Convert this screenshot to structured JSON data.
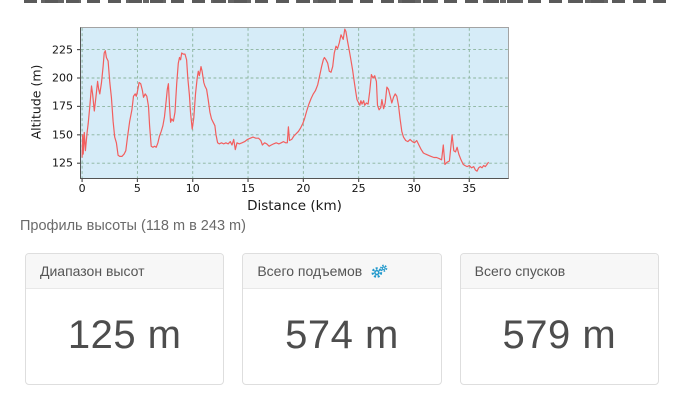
{
  "subtitle": "Профиль высоты (118 m в 243 m)",
  "chart_data": {
    "type": "line",
    "title": "",
    "xlabel": "Distance (km)",
    "ylabel": "Altitude (m)",
    "x_ticks": [
      0,
      5,
      10,
      15,
      20,
      25,
      30,
      35
    ],
    "y_ticks": [
      125,
      150,
      175,
      200,
      225
    ],
    "x_range": [
      -0.1,
      38.5
    ],
    "y_range": [
      112,
      244
    ],
    "grid": true,
    "legend": "none",
    "colors": {
      "plot_bg": "#d6ecf8",
      "grid": "#8ab39c",
      "line": "#f25e5e",
      "spine_dark": "#535353",
      "spine_light": "#a3a3a3"
    },
    "x": [
      0,
      0.05,
      0.1,
      0.2,
      0.3,
      0.45,
      0.55,
      0.7,
      0.85,
      0.95,
      1.1,
      1.25,
      1.4,
      1.5,
      1.6,
      1.75,
      1.9,
      2.0,
      2.1,
      2.2,
      2.35,
      2.5,
      2.65,
      2.8,
      2.95,
      3.1,
      3.25,
      3.4,
      3.6,
      3.8,
      3.95,
      4.1,
      4.3,
      4.5,
      4.65,
      4.8,
      4.9,
      5.0,
      5.15,
      5.3,
      5.45,
      5.55,
      5.7,
      5.85,
      6.0,
      6.1,
      6.25,
      6.4,
      6.55,
      6.7,
      6.85,
      7.0,
      7.15,
      7.3,
      7.45,
      7.6,
      7.7,
      7.8,
      7.9,
      8.0,
      8.1,
      8.25,
      8.4,
      8.55,
      8.7,
      8.8,
      8.9,
      9.0,
      9.15,
      9.3,
      9.45,
      9.55,
      9.7,
      9.8,
      9.95,
      10.1,
      10.25,
      10.4,
      10.5,
      10.6,
      10.75,
      10.85,
      11.0,
      11.1,
      11.25,
      11.4,
      11.55,
      11.7,
      11.85,
      12.0,
      12.1,
      12.25,
      12.4,
      12.6,
      12.8,
      13.0,
      13.2,
      13.4,
      13.55,
      13.7,
      13.85,
      14.0,
      14.2,
      14.45,
      14.7,
      14.95,
      15.2,
      15.45,
      15.7,
      15.95,
      16.15,
      16.3,
      16.5,
      16.7,
      16.9,
      17.1,
      17.3,
      17.55,
      17.8,
      18.0,
      18.2,
      18.4,
      18.55,
      18.65,
      18.75,
      18.95,
      19.15,
      19.35,
      19.55,
      19.75,
      19.95,
      20.1,
      20.3,
      20.5,
      20.7,
      20.9,
      21.1,
      21.3,
      21.5,
      21.65,
      21.8,
      21.9,
      22.05,
      22.2,
      22.35,
      22.5,
      22.65,
      22.8,
      22.95,
      23.1,
      23.25,
      23.4,
      23.5,
      23.6,
      23.75,
      23.85,
      24.0,
      24.15,
      24.3,
      24.45,
      24.6,
      24.75,
      24.85,
      25.0,
      25.1,
      25.2,
      25.3,
      25.45,
      25.55,
      25.7,
      25.85,
      26.0,
      26.15,
      26.3,
      26.45,
      26.6,
      26.7,
      26.85,
      27.0,
      27.1,
      27.25,
      27.4,
      27.55,
      27.7,
      27.85,
      28.0,
      28.15,
      28.3,
      28.45,
      28.6,
      28.75,
      28.9,
      29.05,
      29.25,
      29.45,
      29.65,
      29.85,
      30.05,
      30.25,
      30.45,
      30.65,
      30.85,
      31.05,
      31.3,
      31.55,
      31.8,
      32.05,
      32.3,
      32.5,
      32.65,
      32.8,
      33.0,
      33.2,
      33.45,
      33.6,
      33.75,
      33.9,
      34.05,
      34.25,
      34.45,
      34.6,
      34.8,
      35.0,
      35.2,
      35.4,
      35.55,
      35.7,
      35.85,
      36.0,
      36.15,
      36.3,
      36.45,
      36.6,
      36.75
    ],
    "y": [
      130,
      150,
      133,
      152,
      136,
      152,
      160,
      175,
      193,
      186,
      171,
      183,
      197,
      190,
      186,
      196,
      210,
      222,
      224,
      218,
      215,
      196,
      183,
      162,
      148,
      143,
      132,
      131,
      131,
      133,
      136,
      148,
      162,
      172,
      184,
      186,
      184,
      188,
      196,
      195,
      189,
      183,
      186,
      184,
      175,
      158,
      140,
      139,
      140,
      139,
      143,
      149,
      153,
      158,
      166,
      180,
      190,
      195,
      176,
      161,
      164,
      162,
      170,
      195,
      213,
      218,
      216,
      222,
      221,
      221,
      216,
      200,
      185,
      170,
      155,
      165,
      186,
      200,
      206,
      202,
      210,
      206,
      196,
      193,
      190,
      181,
      170,
      164,
      161,
      158,
      150,
      143,
      142,
      143,
      142,
      143,
      142,
      144,
      141,
      146,
      137,
      143,
      142,
      143,
      144,
      146,
      147,
      148,
      147,
      147,
      145,
      141,
      143,
      142,
      140,
      141,
      142,
      143,
      142,
      143,
      144,
      143,
      143,
      157,
      145,
      146,
      149,
      151,
      153,
      156,
      160,
      164,
      171,
      177,
      182,
      186,
      189,
      194,
      203,
      210,
      216,
      218,
      216,
      213,
      206,
      205,
      210,
      222,
      228,
      226,
      231,
      238,
      236,
      234,
      243,
      241,
      232,
      224,
      216,
      207,
      197,
      187,
      181,
      178,
      176,
      180,
      177,
      180,
      176,
      178,
      177,
      188,
      203,
      200,
      202,
      197,
      176,
      172,
      174,
      181,
      173,
      178,
      192,
      190,
      184,
      178,
      183,
      186,
      184,
      176,
      164,
      153,
      148,
      145,
      144,
      146,
      144,
      143,
      145,
      141,
      137,
      134,
      133,
      132,
      131,
      130,
      130,
      129,
      128,
      141,
      124,
      126,
      127,
      150,
      136,
      135,
      139,
      133,
      128,
      124,
      123,
      122,
      123,
      121,
      122,
      119,
      118,
      121,
      122,
      121,
      123,
      122,
      124,
      126
    ]
  },
  "cards": [
    {
      "title": "Диапазон высот",
      "value": "125 m"
    },
    {
      "title": "Всего подъемов",
      "value": "574 m",
      "icon": "gears-icon",
      "icon_color": "#2299cc"
    },
    {
      "title": "Всего спусков",
      "value": "579 m"
    }
  ]
}
